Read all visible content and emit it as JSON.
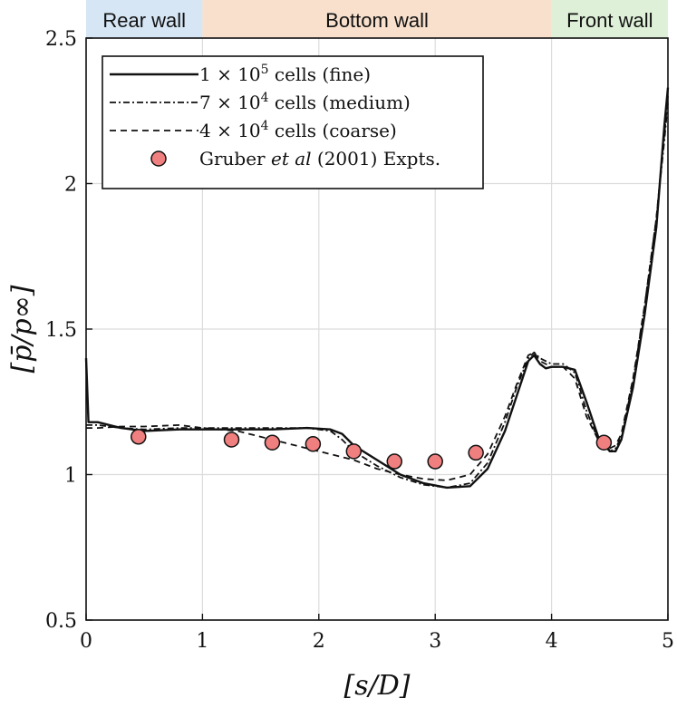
{
  "chart_data": {
    "type": "line",
    "xlabel": "[s/D]",
    "ylabel": "[p̄/p∞]",
    "xlim": [
      0,
      5
    ],
    "ylim": [
      0.5,
      2.5
    ],
    "xticks": [
      0,
      1,
      2,
      3,
      4,
      5
    ],
    "xtick_labels": [
      "0",
      "1",
      "2",
      "3",
      "4",
      "5"
    ],
    "yticks": [
      0.5,
      1,
      1.5,
      2,
      2.5
    ],
    "ytick_labels": [
      "0.5",
      "1",
      "1.5",
      "2",
      "2.5"
    ],
    "grid": true,
    "legend_position": "top-left",
    "regions": [
      {
        "label": "Rear wall",
        "x_start": 0,
        "x_end": 1,
        "color": "#d6e6f5"
      },
      {
        "label": "Bottom wall",
        "x_start": 1,
        "x_end": 4,
        "color": "#f8e0cc"
      },
      {
        "label": "Front wall",
        "x_start": 4,
        "x_end": 5,
        "color": "#dff0d8"
      }
    ],
    "series": [
      {
        "name": "1 × 10^5 cells (fine)",
        "legend_main": "1 × 10",
        "legend_sup": "5",
        "legend_rest": " cells (fine)",
        "style": "solid",
        "x": [
          0,
          0.02,
          0.1,
          0.3,
          0.5,
          0.8,
          1.0,
          1.3,
          1.6,
          1.9,
          2.1,
          2.2,
          2.3,
          2.5,
          2.7,
          2.9,
          3.1,
          3.3,
          3.45,
          3.6,
          3.7,
          3.8,
          3.85,
          3.9,
          3.95,
          4.0,
          4.1,
          4.2,
          4.3,
          4.4,
          4.5,
          4.55,
          4.6,
          4.7,
          4.8,
          4.9,
          4.97,
          5.0
        ],
        "y": [
          1.4,
          1.18,
          1.18,
          1.16,
          1.15,
          1.155,
          1.155,
          1.155,
          1.155,
          1.16,
          1.155,
          1.14,
          1.1,
          1.05,
          1.0,
          0.97,
          0.955,
          0.96,
          1.02,
          1.15,
          1.27,
          1.39,
          1.41,
          1.38,
          1.365,
          1.37,
          1.37,
          1.36,
          1.25,
          1.13,
          1.08,
          1.08,
          1.12,
          1.3,
          1.55,
          1.85,
          2.2,
          2.33
        ]
      },
      {
        "name": "7 × 10^4 cells (medium)",
        "legend_main": "7 × 10",
        "legend_sup": "4",
        "legend_rest": " cells (medium)",
        "style": "dashdot",
        "x": [
          0,
          0.02,
          0.1,
          0.3,
          0.5,
          0.8,
          1.0,
          1.3,
          1.6,
          1.9,
          2.1,
          2.2,
          2.3,
          2.5,
          2.7,
          2.9,
          3.1,
          3.3,
          3.45,
          3.6,
          3.7,
          3.8,
          3.85,
          3.9,
          3.95,
          4.0,
          4.1,
          4.2,
          4.3,
          4.4,
          4.5,
          4.55,
          4.6,
          4.7,
          4.8,
          4.9,
          4.97,
          5.0
        ],
        "y": [
          1.17,
          1.17,
          1.17,
          1.16,
          1.155,
          1.16,
          1.16,
          1.16,
          1.16,
          1.16,
          1.15,
          1.12,
          1.08,
          1.03,
          0.99,
          0.965,
          0.955,
          0.97,
          1.04,
          1.18,
          1.3,
          1.4,
          1.42,
          1.4,
          1.39,
          1.38,
          1.38,
          1.35,
          1.22,
          1.12,
          1.08,
          1.09,
          1.13,
          1.32,
          1.58,
          1.88,
          2.15,
          2.28
        ]
      },
      {
        "name": "4 × 10^4 cells (coarse)",
        "legend_main": "4 × 10",
        "legend_sup": "4",
        "legend_rest": " cells (coarse)",
        "style": "dashed",
        "x": [
          0,
          0.02,
          0.1,
          0.3,
          0.5,
          0.8,
          1.0,
          1.3,
          1.6,
          1.9,
          2.1,
          2.2,
          2.3,
          2.5,
          2.7,
          2.9,
          3.1,
          3.3,
          3.45,
          3.6,
          3.7,
          3.8,
          3.85,
          3.9,
          3.95,
          4.0,
          4.1,
          4.2,
          4.3,
          4.4,
          4.5,
          4.55,
          4.6,
          4.7,
          4.8,
          4.9,
          4.97,
          5.0
        ],
        "y": [
          1.16,
          1.16,
          1.16,
          1.165,
          1.165,
          1.17,
          1.16,
          1.15,
          1.12,
          1.09,
          1.07,
          1.06,
          1.05,
          1.02,
          1.0,
          0.985,
          0.98,
          1.0,
          1.07,
          1.2,
          1.31,
          1.41,
          1.42,
          1.39,
          1.38,
          1.37,
          1.37,
          1.33,
          1.2,
          1.12,
          1.09,
          1.1,
          1.14,
          1.33,
          1.58,
          1.88,
          2.17,
          2.3
        ]
      },
      {
        "name": "Gruber et al (2001) Expts.",
        "legend_pre": "Gruber ",
        "legend_italic": "et al",
        "legend_post": " (2001) Expts.",
        "style": "markers",
        "marker_color": "#f07f7f",
        "x": [
          0.45,
          1.25,
          1.6,
          1.95,
          2.3,
          2.65,
          3.0,
          3.35,
          4.45
        ],
        "y": [
          1.13,
          1.12,
          1.11,
          1.105,
          1.08,
          1.045,
          1.045,
          1.075,
          1.11
        ]
      }
    ]
  }
}
